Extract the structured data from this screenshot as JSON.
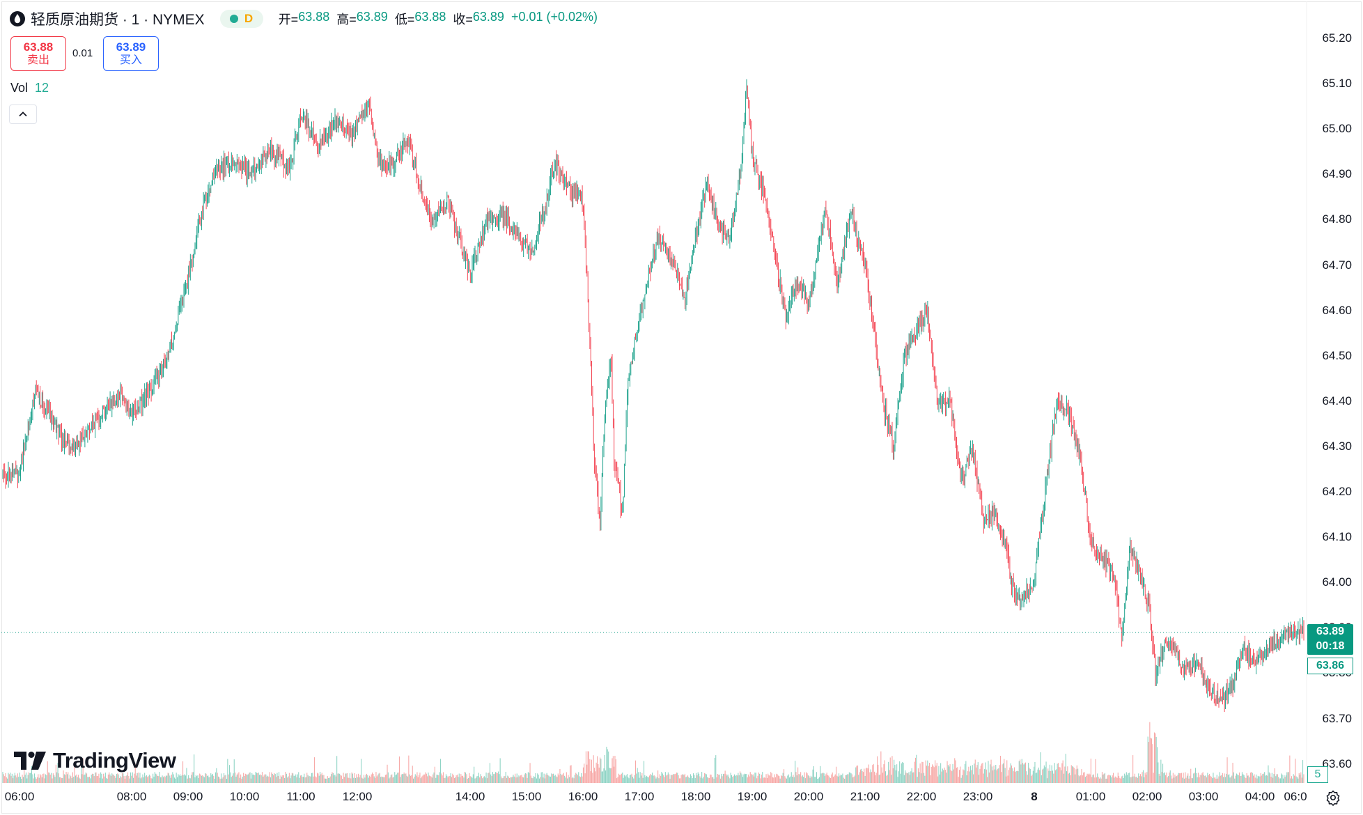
{
  "header": {
    "symbol_title": "轻质原油期货 · 1 · NYMEX",
    "status_letter": "D",
    "ohlc": {
      "open_label": "开=",
      "open": "63.88",
      "high_label": "高=",
      "high": "63.89",
      "low_label": "低=",
      "low": "63.88",
      "close_label": "收=",
      "close": "63.89",
      "change": "+0.01 (+0.02%)"
    }
  },
  "trade": {
    "sell_price": "63.88",
    "sell_label": "卖出",
    "spread": "0.01",
    "buy_price": "63.89",
    "buy_label": "买入"
  },
  "volume_indicator": {
    "label": "Vol",
    "value": "12"
  },
  "price_axis": {
    "current_price": "63.89",
    "countdown": "00:18",
    "bid_price": "63.86",
    "volume_value": "5"
  },
  "brand": {
    "name": "TradingView"
  },
  "icons": {
    "symbol": "oil-drop-icon",
    "collapse": "chevron-up-icon",
    "settings": "settings-icon",
    "brand_logo": "tradingview-logo-icon"
  },
  "colors": {
    "up": "#089981",
    "down": "#f23645",
    "up_volume": "#8fd4c5",
    "down_volume": "#f7a9a7"
  },
  "chart_data": {
    "type": "candlestick",
    "interval_minutes": 1,
    "ylim": [
      63.58,
      65.24
    ],
    "y_ticks": [
      "65.20",
      "65.10",
      "65.00",
      "64.90",
      "64.80",
      "64.70",
      "64.60",
      "64.50",
      "64.40",
      "64.30",
      "64.20",
      "64.10",
      "64.00",
      "63.90",
      "63.80",
      "63.70",
      "63.60"
    ],
    "x_ticks": [
      {
        "label": "06:00",
        "hour": 6
      },
      {
        "label": "08:00",
        "hour": 8
      },
      {
        "label": "09:00",
        "hour": 9
      },
      {
        "label": "10:00",
        "hour": 10
      },
      {
        "label": "11:00",
        "hour": 11
      },
      {
        "label": "12:00",
        "hour": 12
      },
      {
        "label": "14:00",
        "hour": 14
      },
      {
        "label": "15:00",
        "hour": 15
      },
      {
        "label": "16:00",
        "hour": 16
      },
      {
        "label": "17:00",
        "hour": 17
      },
      {
        "label": "18:00",
        "hour": 18
      },
      {
        "label": "19:00",
        "hour": 19
      },
      {
        "label": "20:00",
        "hour": 20
      },
      {
        "label": "21:00",
        "hour": 21
      },
      {
        "label": "22:00",
        "hour": 22
      },
      {
        "label": "23:00",
        "hour": 23
      },
      {
        "label": "8",
        "hour": 24
      },
      {
        "label": "01:00",
        "hour": 25
      },
      {
        "label": "02:00",
        "hour": 26
      },
      {
        "label": "03:00",
        "hour": 27
      },
      {
        "label": "04:00",
        "hour": 28
      },
      {
        "label": "06:0",
        "hour": 30
      }
    ],
    "last_price": 63.89,
    "price_path": [
      [
        6.0,
        64.24
      ],
      [
        6.3,
        64.42
      ],
      [
        6.6,
        64.36
      ],
      [
        6.9,
        64.29
      ],
      [
        7.2,
        64.33
      ],
      [
        7.5,
        64.38
      ],
      [
        7.8,
        64.42
      ],
      [
        8.0,
        64.37
      ],
      [
        8.3,
        64.42
      ],
      [
        8.6,
        64.48
      ],
      [
        8.8,
        64.57
      ],
      [
        9.0,
        64.67
      ],
      [
        9.2,
        64.8
      ],
      [
        9.45,
        64.9
      ],
      [
        9.8,
        64.93
      ],
      [
        10.1,
        64.9
      ],
      [
        10.4,
        64.95
      ],
      [
        10.6,
        64.94
      ],
      [
        10.8,
        64.91
      ],
      [
        11.0,
        65.04
      ],
      [
        11.3,
        64.96
      ],
      [
        11.6,
        65.02
      ],
      [
        11.9,
        64.99
      ],
      [
        12.2,
        65.05
      ],
      [
        12.4,
        64.92
      ],
      [
        12.65,
        64.93
      ],
      [
        12.9,
        64.98
      ],
      [
        13.1,
        64.88
      ],
      [
        13.3,
        64.8
      ],
      [
        13.6,
        64.84
      ],
      [
        13.8,
        64.76
      ],
      [
        14.0,
        64.68
      ],
      [
        14.3,
        64.8
      ],
      [
        14.6,
        64.81
      ],
      [
        14.9,
        64.75
      ],
      [
        15.1,
        64.73
      ],
      [
        15.3,
        64.82
      ],
      [
        15.5,
        64.92
      ],
      [
        15.8,
        64.86
      ],
      [
        16.0,
        64.84
      ],
      [
        16.1,
        64.6
      ],
      [
        16.2,
        64.28
      ],
      [
        16.3,
        64.13
      ],
      [
        16.4,
        64.41
      ],
      [
        16.5,
        64.48
      ],
      [
        16.55,
        64.28
      ],
      [
        16.7,
        64.15
      ],
      [
        16.8,
        64.45
      ],
      [
        17.0,
        64.58
      ],
      [
        17.3,
        64.76
      ],
      [
        17.6,
        64.71
      ],
      [
        17.8,
        64.62
      ],
      [
        18.0,
        64.76
      ],
      [
        18.2,
        64.88
      ],
      [
        18.4,
        64.79
      ],
      [
        18.6,
        64.76
      ],
      [
        18.8,
        64.91
      ],
      [
        18.9,
        65.1
      ],
      [
        19.0,
        64.94
      ],
      [
        19.2,
        64.86
      ],
      [
        19.4,
        64.73
      ],
      [
        19.6,
        64.58
      ],
      [
        19.8,
        64.67
      ],
      [
        20.0,
        64.61
      ],
      [
        20.3,
        64.83
      ],
      [
        20.5,
        64.65
      ],
      [
        20.75,
        64.82
      ],
      [
        21.0,
        64.7
      ],
      [
        21.2,
        64.51
      ],
      [
        21.35,
        64.38
      ],
      [
        21.5,
        64.3
      ],
      [
        21.7,
        64.5
      ],
      [
        21.9,
        64.55
      ],
      [
        22.1,
        64.6
      ],
      [
        22.3,
        64.38
      ],
      [
        22.5,
        64.41
      ],
      [
        22.7,
        64.22
      ],
      [
        22.9,
        64.3
      ],
      [
        23.1,
        64.14
      ],
      [
        23.3,
        64.15
      ],
      [
        23.5,
        64.08
      ],
      [
        23.6,
        63.99
      ],
      [
        23.75,
        63.96
      ],
      [
        24.0,
        64.0
      ],
      [
        24.2,
        64.21
      ],
      [
        24.4,
        64.4
      ],
      [
        24.6,
        64.38
      ],
      [
        24.8,
        64.28
      ],
      [
        25.0,
        64.1
      ],
      [
        25.2,
        64.05
      ],
      [
        25.4,
        64.02
      ],
      [
        25.55,
        63.88
      ],
      [
        25.7,
        64.08
      ],
      [
        25.9,
        64.01
      ],
      [
        26.05,
        63.93
      ],
      [
        26.15,
        63.8
      ],
      [
        26.3,
        63.86
      ],
      [
        26.5,
        63.85
      ],
      [
        26.7,
        63.8
      ],
      [
        26.9,
        63.83
      ],
      [
        27.1,
        63.76
      ],
      [
        27.3,
        63.74
      ],
      [
        27.5,
        63.77
      ],
      [
        27.7,
        63.85
      ],
      [
        27.9,
        63.83
      ],
      [
        28.1,
        63.85
      ],
      [
        28.3,
        63.87
      ],
      [
        28.45,
        63.89
      ]
    ]
  }
}
